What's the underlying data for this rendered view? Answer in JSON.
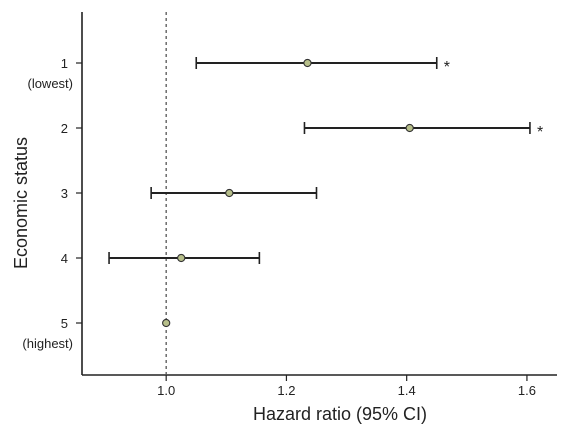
{
  "chart_data": {
    "type": "forest",
    "xlabel": "Hazard ratio (95% CI)",
    "ylabel": "Economic status",
    "xlim": [
      0.86,
      1.65
    ],
    "xticks": [
      1.0,
      1.2,
      1.4,
      1.6
    ],
    "xtick_labels": [
      "1.0",
      "1.2",
      "1.4",
      "1.6"
    ],
    "reference_line": 1.0,
    "grid": false,
    "colors": {
      "marker_fill": "#b7bf8a",
      "line": "#222222",
      "reference": "#555555"
    },
    "categories": [
      {
        "label": "1",
        "sublabel": "(lowest)",
        "hr": 1.235,
        "lower": 1.05,
        "upper": 1.45,
        "significant": "*"
      },
      {
        "label": "2",
        "sublabel": "",
        "hr": 1.405,
        "lower": 1.23,
        "upper": 1.605,
        "significant": "*"
      },
      {
        "label": "3",
        "sublabel": "",
        "hr": 1.105,
        "lower": 0.975,
        "upper": 1.25,
        "significant": ""
      },
      {
        "label": "4",
        "sublabel": "",
        "hr": 1.025,
        "lower": 0.905,
        "upper": 1.155,
        "significant": ""
      },
      {
        "label": "5",
        "sublabel": "(highest)",
        "hr": 1.0,
        "lower": null,
        "upper": null,
        "significant": ""
      }
    ]
  }
}
